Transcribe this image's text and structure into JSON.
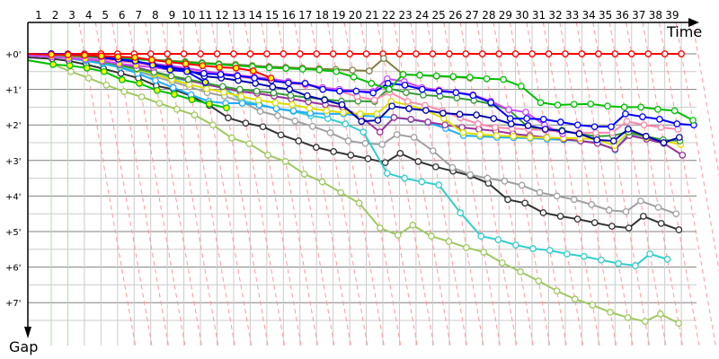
{
  "chart_data": {
    "type": "line",
    "title": "",
    "xlabel": "Time",
    "ylabel": "Gap",
    "x_tick_labels": [
      "1",
      "2",
      "3",
      "4",
      "5",
      "6",
      "7",
      "8",
      "9",
      "10",
      "11",
      "12",
      "13",
      "14",
      "15",
      "16",
      "17",
      "18",
      "19",
      "20",
      "21",
      "22",
      "23",
      "24",
      "25",
      "26",
      "27",
      "28",
      "29",
      "30",
      "31",
      "32",
      "33",
      "34",
      "35",
      "36",
      "37",
      "38",
      "39"
    ],
    "y_tick_labels": [
      "+0'",
      "+1'",
      "+2'",
      "+3'",
      "+4'",
      "+5'",
      "+6'",
      "+7'"
    ],
    "y_unit": "minutes",
    "ylim": [
      0,
      7.9
    ],
    "grid": true,
    "lap_lines_color": "#ff9999",
    "series": [
      {
        "color": "#ff0000",
        "marker": "#ffffff",
        "start_lap": 0,
        "gaps": [
          0,
          0,
          0,
          0,
          0,
          0,
          0,
          0,
          0,
          0,
          0,
          0,
          0,
          0,
          0,
          0,
          0,
          0,
          0,
          0,
          0,
          0,
          0,
          0,
          0,
          0,
          0,
          0,
          0,
          0,
          0,
          0,
          0,
          0,
          0,
          0,
          0,
          0,
          0,
          0
        ]
      },
      {
        "color": "#808040",
        "marker": "#ffffff",
        "start_lap": 0,
        "gaps": [
          0,
          0.02,
          0.03,
          0.05,
          0.07,
          0.1,
          0.13,
          0.16,
          0.19,
          0.22,
          0.25,
          0.28,
          0.3,
          0.33,
          0.36,
          0.38,
          0.4,
          0.42,
          0.44,
          0.46,
          0.48,
          0.13,
          0.58,
          0.6,
          0.63,
          0.65,
          0.68
        ]
      },
      {
        "color": "#a0c860",
        "marker": "#ffffff",
        "start_lap": 0,
        "gaps": [
          0.18,
          0.3,
          0.5,
          0.68,
          0.88,
          1.06,
          1.21,
          1.39,
          1.56,
          1.72,
          2.0,
          2.37,
          2.53,
          2.85,
          3.03,
          3.38,
          3.6,
          3.9,
          4.2,
          4.9,
          5.1,
          4.82,
          5.13,
          5.28,
          5.45,
          5.58,
          5.88,
          6.13,
          6.39,
          6.67,
          6.9,
          7.07,
          7.27,
          7.42,
          7.53,
          7.32,
          7.58
        ]
      },
      {
        "color": "#333333",
        "marker": "#ffffff",
        "start_lap": 0,
        "gaps": [
          0.1,
          0.14,
          0.2,
          0.3,
          0.42,
          0.55,
          0.68,
          0.9,
          1.0,
          1.19,
          1.45,
          1.8,
          1.95,
          2.05,
          2.28,
          2.45,
          2.63,
          2.75,
          2.85,
          2.95,
          3.06,
          2.8,
          3.03,
          3.18,
          3.3,
          3.43,
          3.64,
          4.1,
          4.2,
          4.47,
          4.57,
          4.65,
          4.75,
          4.85,
          4.9,
          4.57,
          4.77,
          4.95
        ]
      },
      {
        "color": "#a0a0a0",
        "marker": "#ffffff",
        "start_lap": 0,
        "gaps": [
          0.05,
          0.08,
          0.12,
          0.18,
          0.26,
          0.36,
          0.5,
          0.64,
          0.78,
          0.93,
          1.09,
          1.19,
          1.34,
          1.62,
          1.74,
          1.89,
          2.04,
          2.22,
          2.45,
          2.52,
          2.55,
          2.27,
          2.35,
          2.73,
          3.2,
          3.4,
          3.5,
          3.58,
          3.7,
          3.9,
          4.0,
          4.1,
          4.24,
          4.4,
          4.44,
          4.14,
          4.32,
          4.5
        ]
      },
      {
        "color": "#33cccc",
        "marker": "#ffffff",
        "start_lap": 0,
        "gaps": [
          0.04,
          0.08,
          0.13,
          0.2,
          0.28,
          0.38,
          0.48,
          0.58,
          0.68,
          0.76,
          0.83,
          0.93,
          1.32,
          1.42,
          1.54,
          1.62,
          1.74,
          1.82,
          1.97,
          2.2,
          3.36,
          3.5,
          3.6,
          3.69,
          4.47,
          5.13,
          5.23,
          5.38,
          5.48,
          5.53,
          5.63,
          5.7,
          5.8,
          5.9,
          5.96,
          5.63,
          5.78
        ]
      },
      {
        "color": "#22aaff",
        "marker": "#ffffff",
        "start_lap": 0,
        "gaps": [
          0.04,
          0.08,
          0.12,
          0.18,
          0.26,
          0.38,
          0.55,
          0.75,
          0.95,
          1.15,
          1.34,
          1.39,
          1.39,
          1.44,
          1.54,
          1.6,
          1.67,
          1.69,
          1.69,
          1.74,
          1.76,
          1.79,
          1.85,
          1.93,
          2.1,
          2.3,
          2.32,
          2.35,
          2.36,
          2.37,
          2.4,
          2.42,
          2.45,
          2.5,
          2.7,
          2.25,
          2.35,
          2.45
        ]
      },
      {
        "color": "#993399",
        "marker": "#ffffff",
        "start_lap": 0,
        "gaps": [
          0.03,
          0.06,
          0.1,
          0.14,
          0.2,
          0.28,
          0.38,
          0.5,
          0.63,
          0.75,
          0.86,
          0.96,
          1.06,
          1.11,
          1.19,
          1.27,
          1.35,
          1.43,
          1.5,
          1.77,
          2.2,
          1.79,
          1.84,
          1.92,
          2.0,
          2.07,
          2.12,
          2.17,
          2.25,
          2.3,
          2.35,
          2.4,
          2.45,
          2.52,
          2.68,
          2.3,
          2.4,
          2.52,
          2.85
        ]
      },
      {
        "color": "#dddd00",
        "marker": "#ffffff",
        "start_lap": 0,
        "gaps": [
          0.03,
          0.06,
          0.1,
          0.15,
          0.22,
          0.32,
          0.44,
          0.57,
          0.72,
          0.86,
          0.98,
          1.08,
          1.2,
          1.3,
          1.38,
          1.43,
          1.53,
          1.6,
          1.65,
          1.69,
          1.69,
          1.34,
          1.44,
          1.59,
          1.82,
          2.22,
          2.27,
          2.3,
          2.32,
          2.35,
          2.36,
          2.37,
          2.38,
          2.4,
          2.58,
          2.2,
          2.35,
          2.45,
          2.55
        ]
      },
      {
        "color": "#339933",
        "marker": "#ffffff",
        "start_lap": 0,
        "gaps": [
          0.03,
          0.06,
          0.1,
          0.15,
          0.22,
          0.32,
          0.42,
          0.52,
          0.62,
          0.72,
          0.82,
          0.92,
          1.0,
          1.05,
          1.1,
          1.17,
          1.23,
          1.28,
          1.33,
          1.33,
          1.34,
          0.97,
          1.09,
          1.16,
          1.19,
          1.24,
          1.31,
          1.41,
          1.57,
          2.07,
          2.1,
          2.15,
          2.25,
          2.32,
          2.3,
          2.2,
          2.32,
          2.42,
          2.45
        ]
      },
      {
        "color": "#ff88aa",
        "marker": "#ffffff",
        "start_lap": 0,
        "gaps": [
          0.02,
          0.04,
          0.07,
          0.1,
          0.15,
          0.2,
          0.26,
          0.32,
          0.38,
          0.45,
          0.52,
          0.58,
          0.64,
          0.7,
          0.76,
          0.82,
          0.88,
          0.95,
          1.05,
          1.2,
          1.3,
          1.08,
          1.34,
          1.45,
          1.6,
          1.8,
          1.97,
          2.07,
          2.1,
          2.12,
          2.15,
          2.2,
          2.22,
          2.22,
          2.22,
          1.9,
          2.0,
          2.07,
          2.12
        ]
      },
      {
        "color": "#cc44ff",
        "marker": "#ffffff",
        "start_lap": 0,
        "gaps": [
          0.02,
          0.03,
          0.05,
          0.08,
          0.12,
          0.17,
          0.22,
          0.27,
          0.33,
          0.4,
          0.48,
          0.55,
          0.6,
          0.65,
          0.7,
          0.78,
          0.85,
          0.95,
          1.0,
          1.05,
          1.06,
          0.7,
          0.78,
          0.95,
          1.02,
          1.08,
          1.15,
          1.33,
          1.57,
          1.64,
          2.0,
          2.25
        ]
      },
      {
        "color": "#0000b0",
        "marker": "#ffffff",
        "start_lap": 0,
        "gaps": [
          0,
          0,
          0.03,
          0.05,
          0.1,
          0.17,
          0.22,
          0.3,
          0.38,
          0.45,
          0.63,
          0.68,
          0.75,
          0.83,
          0.93,
          1.0,
          1.18,
          1.3,
          1.43,
          1.9,
          1.87,
          1.47,
          1.54,
          1.59,
          1.67,
          1.7,
          1.72,
          1.82,
          1.97,
          2.02,
          2.12,
          2.17,
          2.25,
          2.42,
          2.45,
          2.12,
          2.32,
          2.5,
          2.35
        ]
      },
      {
        "color": "#0000ff",
        "marker": "#ffffff",
        "start_lap": 0,
        "gaps": [
          0,
          0,
          0.03,
          0.04,
          0.08,
          0.15,
          0.2,
          0.32,
          0.42,
          0.5,
          0.55,
          0.58,
          0.62,
          0.68,
          0.75,
          0.82,
          0.83,
          1.0,
          1.05,
          1.05,
          1.1,
          0.83,
          0.88,
          1.0,
          1.05,
          1.09,
          1.17,
          1.37,
          1.82,
          1.82,
          1.84,
          1.92,
          2.0,
          2.05,
          2.05,
          1.69,
          1.77,
          1.84,
          1.97,
          2.0
        ]
      },
      {
        "color": "#00c000",
        "marker": "#ffffff",
        "start_lap": 0,
        "gaps": [
          0,
          0.03,
          0.05,
          0.07,
          0.09,
          0.12,
          0.15,
          0.18,
          0.21,
          0.24,
          0.27,
          0.3,
          0.33,
          0.36,
          0.39,
          0.41,
          0.43,
          0.45,
          0.5,
          0.65,
          0.83,
          1.0,
          0.58,
          0.6,
          0.62,
          0.64,
          0.66,
          0.7,
          0.72,
          0.91,
          1.37,
          1.44,
          1.42,
          1.41,
          1.47,
          1.5,
          1.5,
          1.56,
          1.6,
          1.87
        ]
      },
      {
        "color": "#00c000",
        "marker": "#ffff00",
        "start_lap": 0,
        "gaps": [
          0.18,
          0.3,
          0.33,
          0.4,
          0.5,
          0.73,
          0.83,
          1.03,
          1.14,
          1.29,
          1.41,
          1.52
        ]
      },
      {
        "color": "#cc44ff",
        "marker": "#ffff00",
        "start_lap": 0,
        "gaps": [
          0.05,
          0.08,
          0.13,
          0.15,
          0.2,
          0.28,
          0.33,
          0.38,
          0.45
        ]
      },
      {
        "color": "#0000ff",
        "marker": "#ffff00",
        "start_lap": 0,
        "gaps": [
          0,
          0,
          0.02,
          0.04,
          0.07,
          0.15,
          0.2,
          0.32,
          0.45,
          0.5,
          0.8
        ]
      },
      {
        "color": "#ff0000",
        "marker": "#ffff00",
        "start_lap": 0,
        "gaps": [
          0,
          0.02,
          0.03,
          0.04,
          0.06,
          0.08,
          0.1,
          0.17,
          0.23,
          0.28,
          0.33,
          0.38,
          0.4,
          0.48,
          0.68
        ]
      }
    ]
  }
}
